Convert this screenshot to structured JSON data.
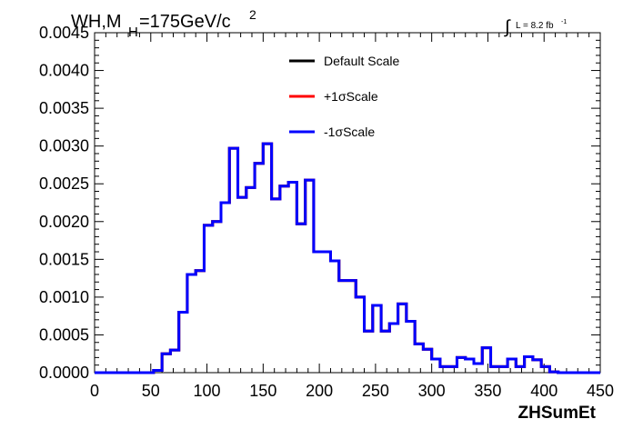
{
  "chart_data": {
    "type": "line",
    "style": "step-histogram",
    "title": {
      "main": "WH,M",
      "sub": "H",
      "rest": "=175GeV/c",
      "sup": "2"
    },
    "lumi": {
      "integral": "∫",
      "label": "L = 8.2 fb",
      "sup": "-1"
    },
    "xlabel": "ZHSumEt",
    "ylabel": "",
    "xlim": [
      0,
      450
    ],
    "ylim": [
      0,
      0.0045
    ],
    "x_ticks": [
      0,
      50,
      100,
      150,
      200,
      250,
      300,
      350,
      400,
      450
    ],
    "y_ticks": [
      "0.0000",
      "0.0005",
      "0.0010",
      "0.0015",
      "0.0020",
      "0.0025",
      "0.0030",
      "0.0035",
      "0.0040",
      "0.0045"
    ],
    "legend_position": "top-center",
    "bin_width": 7.5,
    "bin_edges_start": 0,
    "series": [
      {
        "name": "Default Scale",
        "color": "#000000",
        "values": [
          0,
          0,
          0,
          0,
          0,
          0,
          0,
          3e-05,
          0.00025,
          0.0003,
          0.0008,
          0.0013,
          0.00135,
          0.00195,
          0.002,
          0.00225,
          0.00297,
          0.00232,
          0.00245,
          0.00277,
          0.00303,
          0.0023,
          0.00247,
          0.00252,
          0.00197,
          0.00255,
          0.0016,
          0.0016,
          0.00148,
          0.00122,
          0.00122,
          0.001,
          0.00055,
          0.00089,
          0.00055,
          0.00065,
          0.00091,
          0.00068,
          0.00038,
          0.00031,
          0.00018,
          8e-05,
          8e-05,
          0.0002,
          0.00018,
          0.00012,
          0.00033,
          8e-05,
          8e-05,
          0.00018,
          8e-05,
          0.00021,
          0.00017,
          8e-05,
          1e-05,
          0,
          0,
          0,
          0,
          0
        ]
      },
      {
        "name": "+1σScale",
        "color": "#ff0000",
        "values": [
          0,
          0,
          0,
          0,
          0,
          0,
          0,
          3e-05,
          0.00025,
          0.0003,
          0.0008,
          0.0013,
          0.00135,
          0.00195,
          0.002,
          0.00225,
          0.00297,
          0.00232,
          0.00245,
          0.00277,
          0.00303,
          0.0023,
          0.00247,
          0.00252,
          0.00197,
          0.00255,
          0.0016,
          0.0016,
          0.00148,
          0.00122,
          0.00122,
          0.001,
          0.00055,
          0.00089,
          0.00055,
          0.00065,
          0.00091,
          0.00068,
          0.00038,
          0.00031,
          0.00018,
          8e-05,
          8e-05,
          0.0002,
          0.00018,
          0.00012,
          0.00033,
          8e-05,
          8e-05,
          0.00018,
          8e-05,
          0.00021,
          0.00017,
          8e-05,
          1e-05,
          0,
          0,
          0,
          0,
          0
        ]
      },
      {
        "name": "-1σScale",
        "color": "#0000ff",
        "values": [
          0,
          0,
          0,
          0,
          0,
          0,
          0,
          3e-05,
          0.00025,
          0.0003,
          0.0008,
          0.0013,
          0.00135,
          0.00195,
          0.002,
          0.00225,
          0.00297,
          0.00232,
          0.00245,
          0.00277,
          0.00303,
          0.0023,
          0.00247,
          0.00252,
          0.00197,
          0.00255,
          0.0016,
          0.0016,
          0.00148,
          0.00122,
          0.00122,
          0.001,
          0.00055,
          0.00089,
          0.00055,
          0.00065,
          0.00091,
          0.00068,
          0.00038,
          0.00031,
          0.00018,
          8e-05,
          8e-05,
          0.0002,
          0.00018,
          0.00012,
          0.00033,
          8e-05,
          8e-05,
          0.00018,
          8e-05,
          0.00021,
          0.00017,
          8e-05,
          1e-05,
          0,
          0,
          0,
          0,
          0
        ]
      }
    ]
  }
}
